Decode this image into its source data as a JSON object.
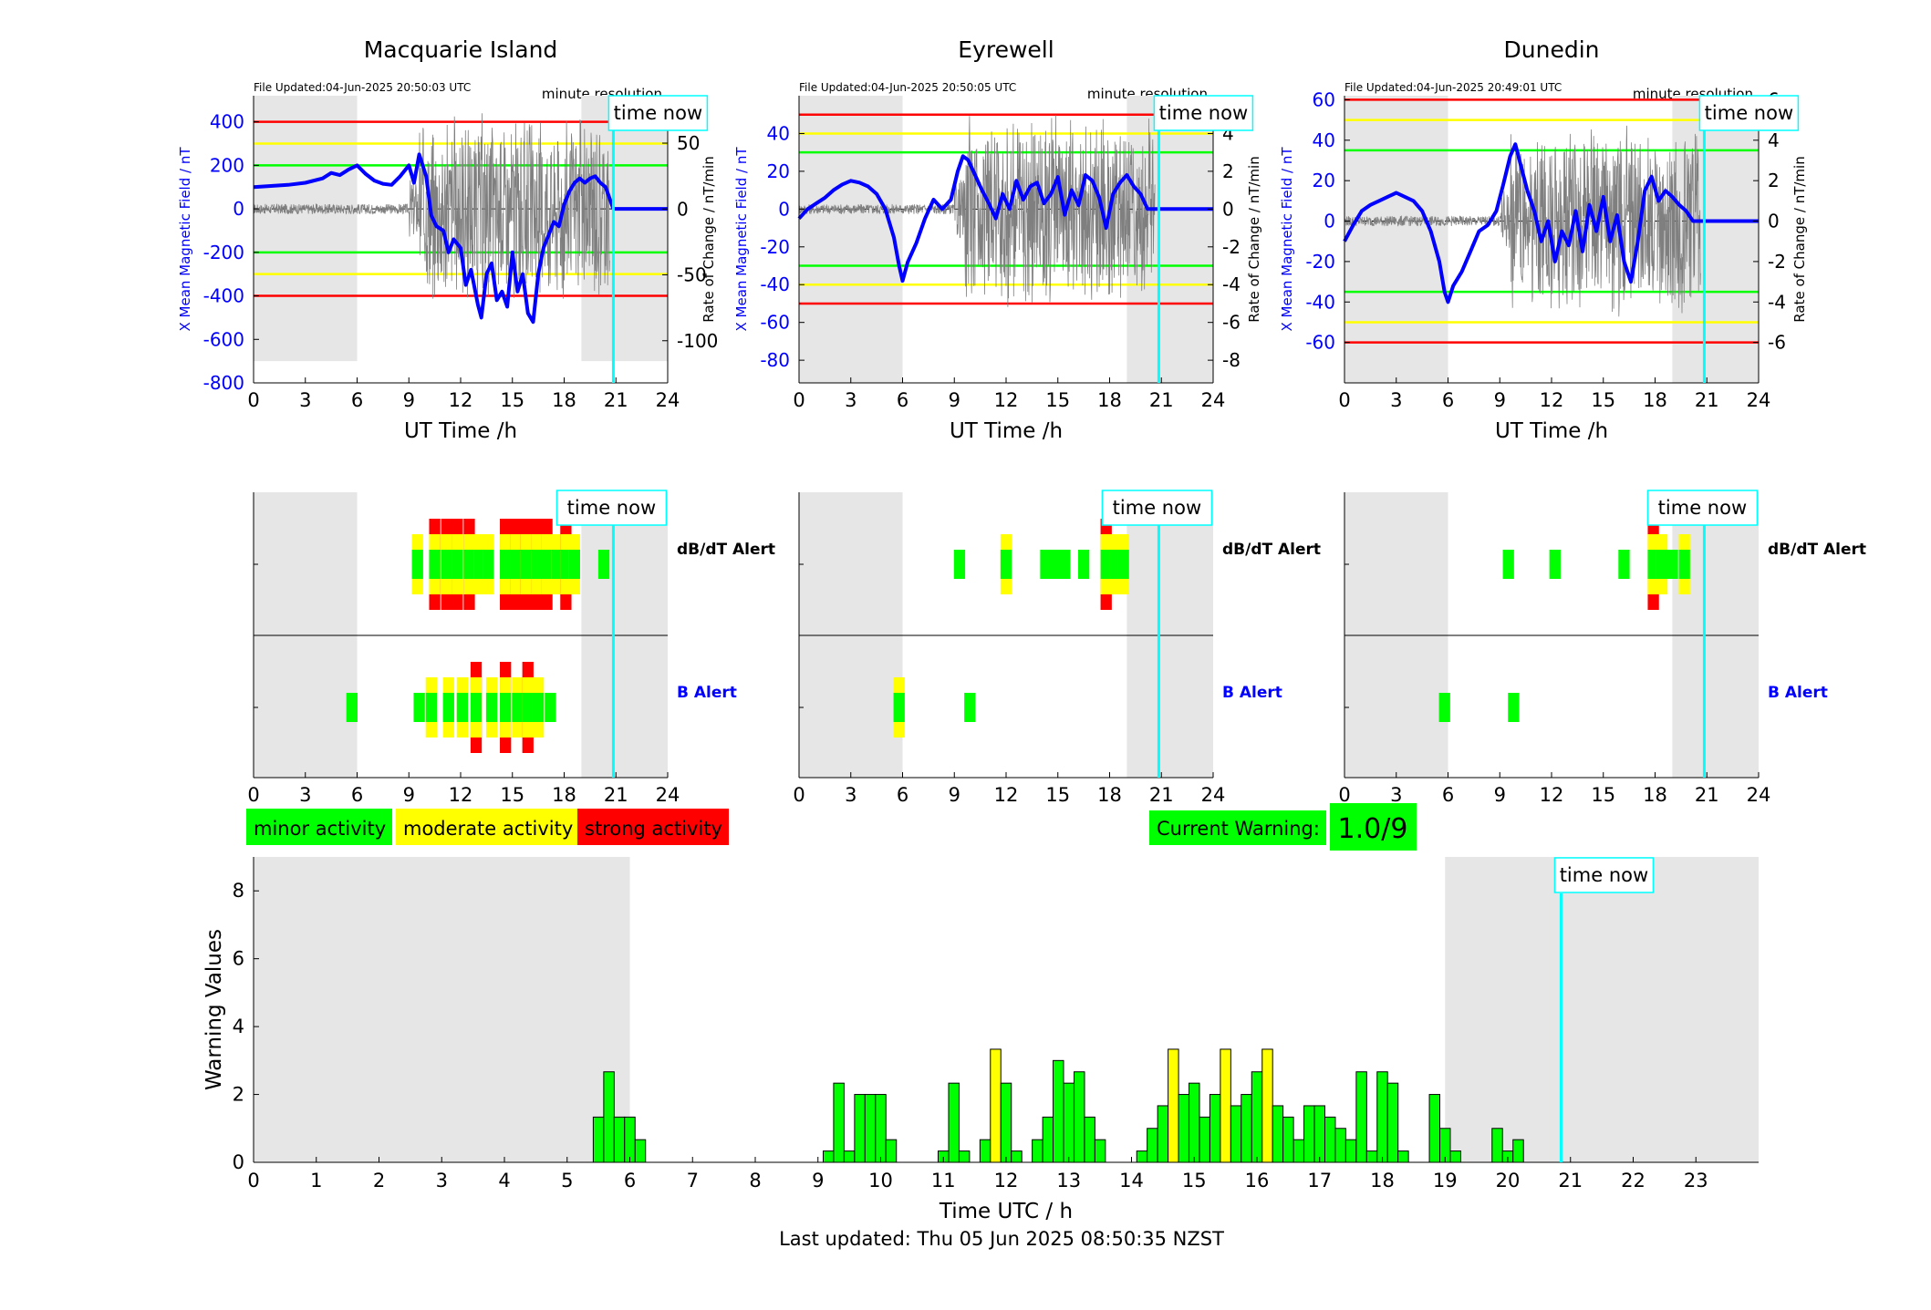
{
  "colors": {
    "blue": "#0000ff",
    "red": "#ff0000",
    "yellow": "#ffff00",
    "green": "#00ff00",
    "cyan": "#00ffff",
    "shade": "#e6e6e6",
    "grey_trace": "#7f7f7f"
  },
  "common": {
    "xlabel": "UT Time /h",
    "x_ticks": [
      0,
      3,
      6,
      9,
      12,
      15,
      18,
      21,
      24
    ],
    "time_now_label": "time now",
    "time_now_hour": 20.85,
    "resolution_label": "minute resolution",
    "ylabel_left": "X Mean Magnetic Field / nT",
    "ylabel_right": "Rate of Change / nT/min",
    "dbdt_label": "dB/dT Alert",
    "b_label": "B Alert",
    "alert_x_ticks": [
      0,
      3,
      6,
      9,
      12,
      15,
      18,
      21,
      24
    ]
  },
  "legend": {
    "minor": "minor activity",
    "moderate": "moderate activity",
    "strong": "strong activity"
  },
  "warning": {
    "label": "Current Warning:",
    "value": "1.0/9"
  },
  "footer": "Last updated: Thu 05 Jun 2025 08:50:35 NZST",
  "chart_data": [
    {
      "type": "line",
      "title": "Macquarie Island",
      "file_updated": "File Updated:04-Jun-2025 20:50:03 UTC",
      "ylim": [
        -800,
        520
      ],
      "y_ticks": [
        -800,
        -600,
        -400,
        -200,
        0,
        200,
        400
      ],
      "ylim_right": [
        -132,
        86
      ],
      "y_ticks_right": [
        -100,
        -50,
        0,
        50
      ],
      "thresholds": {
        "red": 400,
        "yellow": 300,
        "green": 200
      },
      "night_shade": [
        [
          0,
          6
        ],
        [
          19,
          24
        ]
      ],
      "shade_ymin": -700,
      "field_x": [
        0,
        1,
        2,
        3,
        4,
        4.5,
        5,
        5.5,
        6,
        6.5,
        7,
        7.5,
        8,
        8.5,
        9,
        9.3,
        9.6,
        10,
        10.3,
        10.6,
        11,
        11.3,
        11.6,
        12,
        12.3,
        12.6,
        13,
        13.2,
        13.5,
        13.8,
        14.1,
        14.4,
        14.7,
        15,
        15.3,
        15.6,
        15.9,
        16.2,
        16.5,
        16.8,
        17.1,
        17.4,
        17.7,
        18,
        18.3,
        18.6,
        18.9,
        19.2,
        19.5,
        19.8,
        20.1,
        20.4,
        20.85,
        21,
        22,
        23,
        24
      ],
      "field_y": [
        100,
        105,
        110,
        120,
        140,
        165,
        155,
        180,
        200,
        160,
        130,
        115,
        110,
        150,
        200,
        120,
        250,
        150,
        -30,
        -80,
        -100,
        -200,
        -140,
        -180,
        -350,
        -280,
        -440,
        -500,
        -300,
        -250,
        -420,
        -380,
        -450,
        -200,
        -380,
        -300,
        -480,
        -520,
        -300,
        -180,
        -120,
        -60,
        -80,
        20,
        80,
        120,
        140,
        120,
        140,
        150,
        120,
        100,
        0,
        0,
        0,
        0,
        0
      ],
      "dbdt_bars": [
        {
          "x": 9.5,
          "level": 2
        },
        {
          "x": 10.5,
          "level": 3
        },
        {
          "x": 11.2,
          "level": 3
        },
        {
          "x": 11.8,
          "level": 3
        },
        {
          "x": 12.5,
          "level": 3
        },
        {
          "x": 13.1,
          "level": 2
        },
        {
          "x": 13.6,
          "level": 2
        },
        {
          "x": 14.6,
          "level": 3
        },
        {
          "x": 15.2,
          "level": 3
        },
        {
          "x": 15.8,
          "level": 3
        },
        {
          "x": 16.4,
          "level": 3
        },
        {
          "x": 17.0,
          "level": 3
        },
        {
          "x": 17.6,
          "level": 2
        },
        {
          "x": 18.1,
          "level": 3
        },
        {
          "x": 18.6,
          "level": 2
        },
        {
          "x": 20.3,
          "level": 1
        }
      ],
      "b_bars": [
        {
          "x": 5.7,
          "level": 1
        },
        {
          "x": 9.6,
          "level": 1
        },
        {
          "x": 10.3,
          "level": 2
        },
        {
          "x": 11.3,
          "level": 2
        },
        {
          "x": 12.1,
          "level": 2
        },
        {
          "x": 12.9,
          "level": 3
        },
        {
          "x": 13.8,
          "level": 2
        },
        {
          "x": 14.6,
          "level": 3
        },
        {
          "x": 15.3,
          "level": 2
        },
        {
          "x": 15.9,
          "level": 3
        },
        {
          "x": 16.5,
          "level": 2
        },
        {
          "x": 17.2,
          "level": 1
        }
      ]
    },
    {
      "type": "line",
      "title": "Eyrewell",
      "file_updated": "File Updated:04-Jun-2025 20:50:05 UTC",
      "ylim": [
        -92,
        60
      ],
      "y_ticks": [
        -80,
        -60,
        -40,
        -20,
        0,
        20,
        40
      ],
      "ylim_right": [
        -9.2,
        6.0
      ],
      "y_ticks_right": [
        -8,
        -6,
        -4,
        -2,
        0,
        2,
        4
      ],
      "thresholds": {
        "red": 50,
        "yellow": 40,
        "green": 30
      },
      "night_shade": [
        [
          0,
          6
        ],
        [
          19,
          24
        ]
      ],
      "shade_ymin": -92,
      "field_x": [
        0,
        0.5,
        1,
        1.5,
        2,
        2.5,
        3,
        3.5,
        4,
        4.5,
        5,
        5.5,
        5.8,
        6,
        6.3,
        6.8,
        7.3,
        7.8,
        8.3,
        8.8,
        9.2,
        9.5,
        9.8,
        10.2,
        10.6,
        11,
        11.4,
        11.8,
        12.2,
        12.6,
        13,
        13.4,
        13.8,
        14.2,
        14.6,
        15,
        15.4,
        15.8,
        16.2,
        16.6,
        17,
        17.4,
        17.8,
        18.2,
        18.6,
        19,
        19.4,
        19.8,
        20.2,
        21,
        22,
        23,
        24
      ],
      "field_y": [
        -5,
        0,
        3,
        6,
        10,
        13,
        15,
        14,
        12,
        8,
        0,
        -15,
        -30,
        -38,
        -28,
        -18,
        -5,
        5,
        0,
        5,
        20,
        28,
        26,
        18,
        10,
        3,
        -5,
        8,
        0,
        15,
        5,
        12,
        14,
        3,
        8,
        17,
        -3,
        10,
        2,
        18,
        15,
        6,
        -10,
        8,
        14,
        18,
        12,
        8,
        0,
        0,
        0,
        0,
        0
      ],
      "dbdt_bars": [
        {
          "x": 9.3,
          "level": 1
        },
        {
          "x": 12.0,
          "level": 2
        },
        {
          "x": 14.3,
          "level": 1
        },
        {
          "x": 14.8,
          "level": 1
        },
        {
          "x": 15.4,
          "level": 1
        },
        {
          "x": 16.5,
          "level": 1
        },
        {
          "x": 17.8,
          "level": 3
        },
        {
          "x": 18.3,
          "level": 2
        },
        {
          "x": 18.8,
          "level": 2
        }
      ],
      "b_bars": [
        {
          "x": 5.8,
          "level": 2
        },
        {
          "x": 9.9,
          "level": 1
        }
      ]
    },
    {
      "type": "line",
      "title": "Dunedin",
      "file_updated": "File Updated:04-Jun-2025 20:49:01 UTC",
      "ylim": [
        -80,
        62
      ],
      "y_ticks": [
        -60,
        -40,
        -20,
        0,
        20,
        40,
        60
      ],
      "ylim_right": [
        -8.0,
        6.2
      ],
      "y_ticks_right": [
        -6,
        -4,
        -2,
        0,
        2,
        4,
        6
      ],
      "thresholds": {
        "red": 60,
        "yellow": 50,
        "green": 35
      },
      "night_shade": [
        [
          0,
          6
        ],
        [
          19,
          24
        ]
      ],
      "shade_ymin": -80,
      "field_x": [
        0,
        0.5,
        1,
        1.5,
        2,
        2.5,
        3,
        3.5,
        4,
        4.5,
        5,
        5.5,
        5.8,
        6,
        6.3,
        6.8,
        7.3,
        7.8,
        8.3,
        8.8,
        9.2,
        9.6,
        9.9,
        10.2,
        10.6,
        11,
        11.4,
        11.8,
        12.2,
        12.6,
        13,
        13.4,
        13.8,
        14.2,
        14.6,
        15,
        15.4,
        15.8,
        16.2,
        16.6,
        17,
        17.4,
        17.8,
        18.2,
        18.6,
        19,
        19.4,
        19.8,
        20.2,
        21,
        22,
        23,
        24
      ],
      "field_y": [
        -10,
        -2,
        5,
        8,
        10,
        12,
        14,
        12,
        10,
        5,
        -5,
        -20,
        -35,
        -40,
        -32,
        -25,
        -15,
        -5,
        -2,
        5,
        18,
        32,
        38,
        28,
        15,
        5,
        -10,
        0,
        -20,
        -5,
        -12,
        5,
        -15,
        8,
        -5,
        12,
        -10,
        3,
        -20,
        -30,
        -10,
        15,
        22,
        10,
        15,
        12,
        8,
        5,
        0,
        0,
        0,
        0,
        0
      ],
      "dbdt_bars": [
        {
          "x": 9.5,
          "level": 1
        },
        {
          "x": 12.2,
          "level": 1
        },
        {
          "x": 16.2,
          "level": 1
        },
        {
          "x": 17.9,
          "level": 3
        },
        {
          "x": 18.4,
          "level": 2
        },
        {
          "x": 19.0,
          "level": 1
        },
        {
          "x": 19.7,
          "level": 2
        }
      ],
      "b_bars": [
        {
          "x": 5.8,
          "level": 1
        },
        {
          "x": 9.8,
          "level": 1
        }
      ]
    },
    {
      "type": "bar",
      "xlabel": "Time UTC / h",
      "ylabel": "Warning Values",
      "xlim": [
        0,
        24
      ],
      "ylim": [
        0,
        9
      ],
      "x_ticks": [
        0,
        1,
        2,
        3,
        4,
        5,
        6,
        7,
        8,
        9,
        10,
        11,
        12,
        13,
        14,
        15,
        16,
        17,
        18,
        19,
        20,
        21,
        22,
        23
      ],
      "y_ticks": [
        0,
        2,
        4,
        6,
        8
      ],
      "night_shade": [
        [
          0,
          6
        ],
        [
          19,
          24
        ]
      ],
      "bar_width_h": 0.1667,
      "bars": [
        {
          "x": 5.5,
          "v": 1.333
        },
        {
          "x": 5.667,
          "v": 2.667
        },
        {
          "x": 5.833,
          "v": 1.333
        },
        {
          "x": 6.0,
          "v": 1.333
        },
        {
          "x": 6.167,
          "v": 0.667
        },
        {
          "x": 9.167,
          "v": 0.333
        },
        {
          "x": 9.333,
          "v": 2.333
        },
        {
          "x": 9.5,
          "v": 0.333
        },
        {
          "x": 9.667,
          "v": 2.0
        },
        {
          "x": 9.833,
          "v": 2.0
        },
        {
          "x": 10.0,
          "v": 2.0
        },
        {
          "x": 10.167,
          "v": 0.667
        },
        {
          "x": 11.0,
          "v": 0.333
        },
        {
          "x": 11.167,
          "v": 2.333
        },
        {
          "x": 11.333,
          "v": 0.333
        },
        {
          "x": 11.667,
          "v": 0.667
        },
        {
          "x": 11.833,
          "v": 3.333,
          "c": "y"
        },
        {
          "x": 12.0,
          "v": 2.333
        },
        {
          "x": 12.167,
          "v": 0.333
        },
        {
          "x": 12.5,
          "v": 0.667
        },
        {
          "x": 12.667,
          "v": 1.333
        },
        {
          "x": 12.833,
          "v": 3.0
        },
        {
          "x": 13.0,
          "v": 2.333
        },
        {
          "x": 13.167,
          "v": 2.667
        },
        {
          "x": 13.333,
          "v": 1.333
        },
        {
          "x": 13.5,
          "v": 0.667
        },
        {
          "x": 14.167,
          "v": 0.333
        },
        {
          "x": 14.333,
          "v": 1.0
        },
        {
          "x": 14.5,
          "v": 1.667
        },
        {
          "x": 14.667,
          "v": 3.333,
          "c": "y"
        },
        {
          "x": 14.833,
          "v": 2.0
        },
        {
          "x": 15.0,
          "v": 2.333
        },
        {
          "x": 15.167,
          "v": 1.333
        },
        {
          "x": 15.333,
          "v": 2.0
        },
        {
          "x": 15.5,
          "v": 3.333,
          "c": "y"
        },
        {
          "x": 15.667,
          "v": 1.667
        },
        {
          "x": 15.833,
          "v": 2.0
        },
        {
          "x": 16.0,
          "v": 2.667
        },
        {
          "x": 16.167,
          "v": 3.333,
          "c": "y"
        },
        {
          "x": 16.333,
          "v": 1.667
        },
        {
          "x": 16.5,
          "v": 1.333
        },
        {
          "x": 16.667,
          "v": 0.667
        },
        {
          "x": 16.833,
          "v": 1.667
        },
        {
          "x": 17.0,
          "v": 1.667
        },
        {
          "x": 17.167,
          "v": 1.333
        },
        {
          "x": 17.333,
          "v": 1.0
        },
        {
          "x": 17.5,
          "v": 0.667
        },
        {
          "x": 17.667,
          "v": 2.667
        },
        {
          "x": 17.833,
          "v": 0.333
        },
        {
          "x": 18.0,
          "v": 2.667
        },
        {
          "x": 18.167,
          "v": 2.333
        },
        {
          "x": 18.333,
          "v": 0.333
        },
        {
          "x": 18.833,
          "v": 2.0
        },
        {
          "x": 19.0,
          "v": 1.0
        },
        {
          "x": 19.167,
          "v": 0.333
        },
        {
          "x": 19.833,
          "v": 1.0
        },
        {
          "x": 20.0,
          "v": 0.333
        },
        {
          "x": 20.167,
          "v": 0.667
        }
      ]
    }
  ]
}
